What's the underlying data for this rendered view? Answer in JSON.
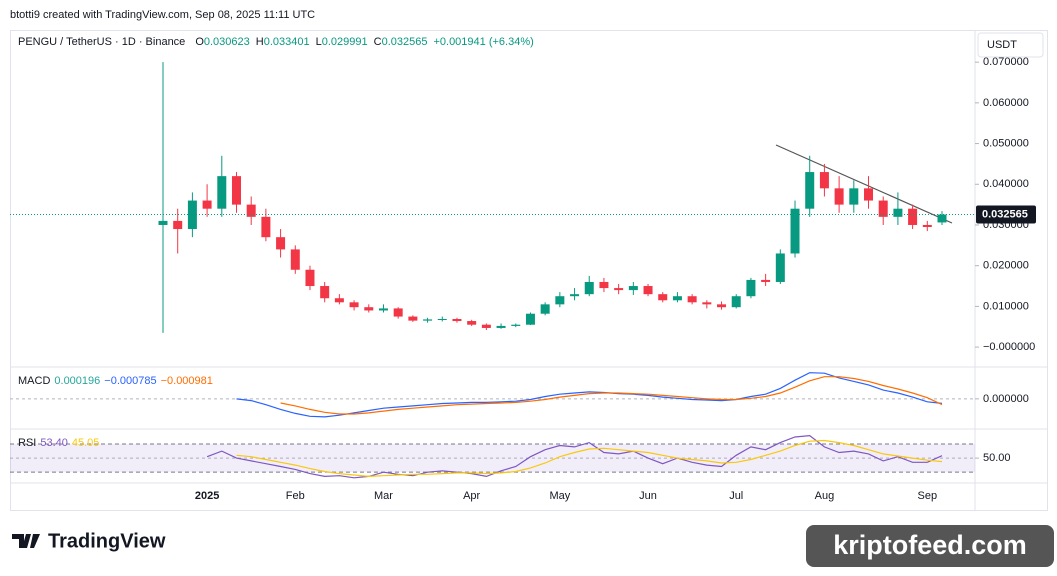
{
  "header": {
    "credit": "btotti9 created with TradingView.com, Sep 08, 2025 11:11 UTC",
    "symbol": "PENGU / TetherUS · 1D · Binance",
    "ohlc_prefixes": [
      "O",
      "H",
      "L",
      "C"
    ],
    "change": "+0.001941 (+6.34%)",
    "currency": "USDT"
  },
  "footer": {
    "logo": "TradingView",
    "watermark": "kriptofeed.com"
  },
  "chart_data": [
    {
      "type": "candlestick",
      "up_color": "#089981",
      "down_color": "#f23645",
      "categories": [
        null,
        null,
        null,
        "2025",
        null,
        null,
        null,
        null,
        null,
        "Feb",
        null,
        null,
        null,
        null,
        null,
        "Mar",
        null,
        null,
        null,
        null,
        null,
        "Apr",
        null,
        null,
        null,
        null,
        null,
        "May",
        null,
        null,
        null,
        null,
        null,
        "Jun",
        null,
        null,
        null,
        null,
        null,
        "Jul",
        null,
        null,
        null,
        null,
        null,
        "Aug",
        null,
        null,
        null,
        null,
        null,
        null,
        "Sep",
        null
      ],
      "open": [
        0.03,
        0.031,
        0.029,
        0.036,
        0.034,
        0.042,
        0.035,
        0.032,
        0.027,
        0.024,
        0.019,
        0.015,
        0.012,
        0.011,
        0.0098,
        0.009,
        0.0095,
        0.0075,
        0.0065,
        0.0068,
        0.0069,
        0.0064,
        0.0055,
        0.0047,
        0.0052,
        0.0055,
        0.0082,
        0.0105,
        0.0125,
        0.013,
        0.016,
        0.0145,
        0.014,
        0.015,
        0.013,
        0.0115,
        0.0125,
        0.011,
        0.0105,
        0.0098,
        0.0125,
        0.0165,
        0.016,
        0.023,
        0.034,
        0.043,
        0.039,
        0.035,
        0.039,
        0.036,
        0.032,
        0.034,
        0.03,
        0.030623
      ],
      "high": [
        0.07,
        0.034,
        0.038,
        0.04,
        0.047,
        0.043,
        0.037,
        0.034,
        0.029,
        0.025,
        0.02,
        0.016,
        0.013,
        0.0115,
        0.0105,
        0.0105,
        0.0098,
        0.0078,
        0.0072,
        0.0075,
        0.0072,
        0.0067,
        0.0058,
        0.0058,
        0.0058,
        0.0085,
        0.011,
        0.0135,
        0.0145,
        0.0175,
        0.017,
        0.0155,
        0.016,
        0.0155,
        0.0135,
        0.0135,
        0.013,
        0.0115,
        0.0112,
        0.013,
        0.017,
        0.018,
        0.024,
        0.036,
        0.047,
        0.045,
        0.042,
        0.041,
        0.042,
        0.037,
        0.038,
        0.035,
        0.031,
        0.033401
      ],
      "low": [
        0.0035,
        0.023,
        0.027,
        0.032,
        0.032,
        0.033,
        0.03,
        0.026,
        0.022,
        0.018,
        0.014,
        0.011,
        0.0105,
        0.009,
        0.0085,
        0.0085,
        0.007,
        0.0062,
        0.006,
        0.0063,
        0.006,
        0.0052,
        0.0042,
        0.0045,
        0.0049,
        0.0054,
        0.0078,
        0.0098,
        0.0115,
        0.0125,
        0.0135,
        0.013,
        0.0128,
        0.0125,
        0.011,
        0.011,
        0.0105,
        0.0095,
        0.0092,
        0.0095,
        0.012,
        0.015,
        0.0155,
        0.022,
        0.032,
        0.037,
        0.033,
        0.033,
        0.034,
        0.03,
        0.03,
        0.029,
        0.0285,
        0.029991
      ],
      "close": [
        0.031,
        0.029,
        0.036,
        0.034,
        0.042,
        0.035,
        0.032,
        0.027,
        0.024,
        0.019,
        0.015,
        0.012,
        0.011,
        0.0098,
        0.009,
        0.0095,
        0.0075,
        0.0065,
        0.0068,
        0.0069,
        0.0064,
        0.0055,
        0.0047,
        0.0052,
        0.0055,
        0.0082,
        0.0105,
        0.0125,
        0.013,
        0.016,
        0.0145,
        0.014,
        0.015,
        0.013,
        0.0115,
        0.0125,
        0.011,
        0.0105,
        0.0098,
        0.0125,
        0.0165,
        0.016,
        0.023,
        0.034,
        0.043,
        0.039,
        0.035,
        0.039,
        0.036,
        0.032,
        0.034,
        0.03,
        0.0295,
        0.032565
      ],
      "ylim": [
        -0.0044,
        0.0779
      ],
      "yticks": [
        {
          "value": 0,
          "label": "−0.000000"
        },
        {
          "value": 0.01,
          "label": "0.010000"
        },
        {
          "value": 0.02,
          "label": "0.020000"
        },
        {
          "value": 0.03,
          "label": "0.030000"
        },
        {
          "value": 0.04,
          "label": "0.040000"
        },
        {
          "value": 0.05,
          "label": "0.050000"
        },
        {
          "value": 0.06,
          "label": "0.060000"
        },
        {
          "value": 0.07,
          "label": "0.070000"
        }
      ],
      "grid": false
    },
    {
      "type": "line",
      "title": "MACD",
      "legend": [
        {
          "text": "0.000196",
          "color": "#26a69a"
        },
        {
          "text": "−0.000785",
          "color": "#2962ff"
        },
        {
          "text": "−0.000981",
          "color": "#ff6d00"
        }
      ],
      "series": [
        {
          "color": "#2962ff",
          "values": [
            null,
            null,
            null,
            null,
            null,
            0,
            -0.0003,
            -0.001,
            -0.0018,
            -0.0025,
            -0.003,
            -0.0031,
            -0.0028,
            -0.0024,
            -0.002,
            -0.0016,
            -0.0014,
            -0.0012,
            -0.001,
            -0.0008,
            -0.0007,
            -0.0006,
            -0.0006,
            -0.0005,
            -0.0004,
            -0.0001,
            0.0004,
            0.0008,
            0.001,
            0.0012,
            0.0011,
            0.0009,
            0.0008,
            0.0006,
            0.0003,
            0.0001,
            -0.0001,
            -0.0002,
            -0.0003,
            -0.0001,
            0.0004,
            0.0008,
            0.0018,
            0.0032,
            0.0045,
            0.0044,
            0.0036,
            0.003,
            0.0024,
            0.0015,
            0.001,
            0.0003,
            -0.0005,
            -0.000785
          ]
        },
        {
          "color": "#ff6d00",
          "values": [
            null,
            null,
            null,
            null,
            null,
            null,
            null,
            null,
            -0.0007,
            -0.0012,
            -0.0018,
            -0.0023,
            -0.0026,
            -0.0026,
            -0.0024,
            -0.0021,
            -0.0018,
            -0.0016,
            -0.0014,
            -0.0012,
            -0.001,
            -0.0009,
            -0.0008,
            -0.0007,
            -0.0006,
            -0.0004,
            -0.0001,
            0.0003,
            0.0006,
            0.0009,
            0.001,
            0.001,
            0.0009,
            0.0008,
            0.0006,
            0.0004,
            0.0002,
            0,
            -0.0001,
            -0.0001,
            0.0001,
            0.0004,
            0.001,
            0.002,
            0.0031,
            0.0038,
            0.0038,
            0.0035,
            0.003,
            0.0023,
            0.0017,
            0.001,
            0.0002,
            -0.000981
          ]
        }
      ],
      "ylim": [
        -0.005,
        0.0053
      ],
      "yticks": [
        {
          "value": 0,
          "label": "0.000000"
        }
      ]
    },
    {
      "type": "line",
      "title": "RSI",
      "legend": [
        {
          "text": "53.40",
          "color": "#7e57c2"
        },
        {
          "text": "45.05",
          "color": "#f9c80e"
        }
      ],
      "series": [
        {
          "color": "#7e57c2",
          "values": [
            null,
            null,
            null,
            52,
            60,
            50,
            46,
            42,
            38,
            34,
            28,
            24,
            25,
            22,
            24,
            30,
            27,
            25,
            30,
            32,
            30,
            28,
            24,
            32,
            38,
            52,
            62,
            68,
            66,
            72,
            58,
            56,
            60,
            50,
            42,
            50,
            44,
            40,
            38,
            54,
            66,
            62,
            72,
            80,
            82,
            66,
            58,
            60,
            56,
            46,
            52,
            44,
            44,
            53.4
          ]
        },
        {
          "color": "#f9c80e",
          "values": [
            null,
            null,
            null,
            null,
            null,
            54,
            52,
            48,
            44,
            40,
            35,
            31,
            28,
            26,
            24,
            25,
            26,
            27,
            27,
            28,
            29,
            29,
            28,
            29,
            31,
            36,
            43,
            52,
            58,
            63,
            64,
            62,
            60,
            58,
            54,
            50,
            48,
            46,
            43,
            44,
            48,
            54,
            60,
            68,
            74,
            75,
            72,
            68,
            62,
            56,
            53,
            50,
            47,
            45.05
          ]
        }
      ],
      "ylim": [
        16,
        90
      ],
      "yticks": [
        {
          "value": 50,
          "label": "50.00"
        }
      ],
      "bands": [
        30,
        70
      ]
    }
  ]
}
